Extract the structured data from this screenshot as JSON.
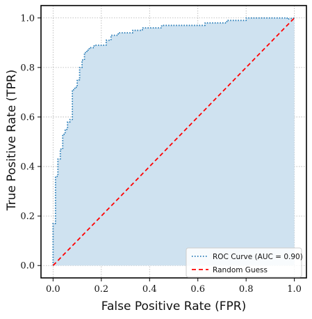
{
  "chart_data": {
    "type": "line",
    "title": "",
    "xlabel": "False Positive Rate (FPR)",
    "ylabel": "True Positive Rate (TPR)",
    "xlim": [
      -0.05,
      1.05
    ],
    "ylim": [
      -0.05,
      1.05
    ],
    "xticks": [
      "0.0",
      "0.2",
      "0.4",
      "0.6",
      "0.8",
      "1.0"
    ],
    "yticks": [
      "0.0",
      "0.2",
      "0.4",
      "0.6",
      "0.8",
      "1.0"
    ],
    "grid": true,
    "legend_position": "lower-right",
    "series": [
      {
        "name": "ROC Curve (AUC = 0.90)",
        "color": "#1f77b4",
        "style": "dotted",
        "fill": "#cfe2f0",
        "x": [
          0.0,
          0.0,
          0.01,
          0.01,
          0.02,
          0.02,
          0.03,
          0.03,
          0.04,
          0.04,
          0.05,
          0.05,
          0.06,
          0.06,
          0.07,
          0.07,
          0.08,
          0.08,
          0.09,
          0.09,
          0.1,
          0.1,
          0.11,
          0.11,
          0.12,
          0.12,
          0.13,
          0.13,
          0.14,
          0.14,
          0.15,
          0.15,
          0.17,
          0.17,
          0.22,
          0.22,
          0.24,
          0.24,
          0.27,
          0.27,
          0.33,
          0.33,
          0.37,
          0.37,
          0.45,
          0.45,
          0.63,
          0.63,
          0.72,
          0.72,
          0.8,
          0.8,
          0.97,
          0.97,
          1.0
        ],
        "y": [
          0.0,
          0.17,
          0.17,
          0.36,
          0.36,
          0.43,
          0.43,
          0.47,
          0.47,
          0.53,
          0.53,
          0.55,
          0.55,
          0.58,
          0.58,
          0.59,
          0.59,
          0.71,
          0.71,
          0.72,
          0.72,
          0.75,
          0.75,
          0.8,
          0.8,
          0.83,
          0.83,
          0.86,
          0.86,
          0.87,
          0.87,
          0.88,
          0.88,
          0.89,
          0.89,
          0.91,
          0.91,
          0.93,
          0.93,
          0.94,
          0.94,
          0.95,
          0.95,
          0.96,
          0.96,
          0.97,
          0.97,
          0.98,
          0.98,
          0.99,
          0.99,
          1.0,
          1.0,
          0.995,
          1.0
        ]
      },
      {
        "name": "Random Guess",
        "color": "#ff0000",
        "style": "dashed",
        "x": [
          0.0,
          1.0
        ],
        "y": [
          0.0,
          1.0
        ]
      }
    ]
  }
}
